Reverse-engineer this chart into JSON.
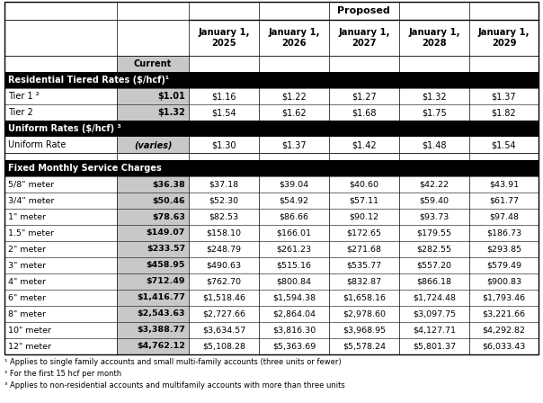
{
  "title": "Proposed",
  "col_headers_proposed": [
    "January 1,\n2025",
    "January 1,\n2026",
    "January 1,\n2027",
    "January 1,\n2028",
    "January 1,\n2029"
  ],
  "rows": [
    [
      "Tier 1 ²",
      "$1.01",
      "$1.16",
      "$1.22",
      "$1.27",
      "$1.32",
      "$1.37"
    ],
    [
      "Tier 2",
      "$1.32",
      "$1.54",
      "$1.62",
      "$1.68",
      "$1.75",
      "$1.82"
    ],
    [
      "Uniform Rate",
      "(varies)",
      "$1.30",
      "$1.37",
      "$1.42",
      "$1.48",
      "$1.54"
    ],
    [
      "5/8\" meter",
      "$36.38",
      "$37.18",
      "$39.04",
      "$40.60",
      "$42.22",
      "$43.91"
    ],
    [
      "3/4\" meter",
      "$50.46",
      "$52.30",
      "$54.92",
      "$57.11",
      "$59.40",
      "$61.77"
    ],
    [
      "1\" meter",
      "$78.63",
      "$82.53",
      "$86.66",
      "$90.12",
      "$93.73",
      "$97.48"
    ],
    [
      "1.5\" meter",
      "$149.07",
      "$158.10",
      "$166.01",
      "$172.65",
      "$179.55",
      "$186.73"
    ],
    [
      "2\" meter",
      "$233.57",
      "$248.79",
      "$261.23",
      "$271.68",
      "$282.55",
      "$293.85"
    ],
    [
      "3\" meter",
      "$458.95",
      "$490.63",
      "$515.16",
      "$535.77",
      "$557.20",
      "$579.49"
    ],
    [
      "4\" meter",
      "$712.49",
      "$762.70",
      "$800.84",
      "$832.87",
      "$866.18",
      "$900.83"
    ],
    [
      "6\" meter",
      "$1,416.77",
      "$1,518.46",
      "$1,594.38",
      "$1,658.16",
      "$1,724.48",
      "$1,793.46"
    ],
    [
      "8\" meter",
      "$2,543.63",
      "$2,727.66",
      "$2,864.04",
      "$2,978.60",
      "$3,097.75",
      "$3,221.66"
    ],
    [
      "10\" meter",
      "$3,388.77",
      "$3,634.57",
      "$3,816.30",
      "$3,968.95",
      "$4,127.71",
      "$4,292.82"
    ],
    [
      "12\" meter",
      "$4,762.12",
      "$5,108.28",
      "$5,363.69",
      "$5,578.24",
      "$5,801.37",
      "$6,033.43"
    ]
  ],
  "sec_headers": [
    "Residential Tiered Rates ($/hcf)¹",
    "Uniform Rates ($/hcf) ³",
    "Fixed Monthly Service Charges"
  ],
  "footnotes": [
    "¹ Applies to single family accounts and small multi-family accounts (three units or fewer)",
    "² For the first 15 hcf per month",
    "³ Applies to non-residential accounts and multifamily accounts with more than three units"
  ],
  "black_bg": "#000000",
  "white_fg": "#ffffff",
  "gray_bg": "#c8c8c8",
  "white_bg": "#ffffff",
  "alt_bg": "#eeeeee"
}
